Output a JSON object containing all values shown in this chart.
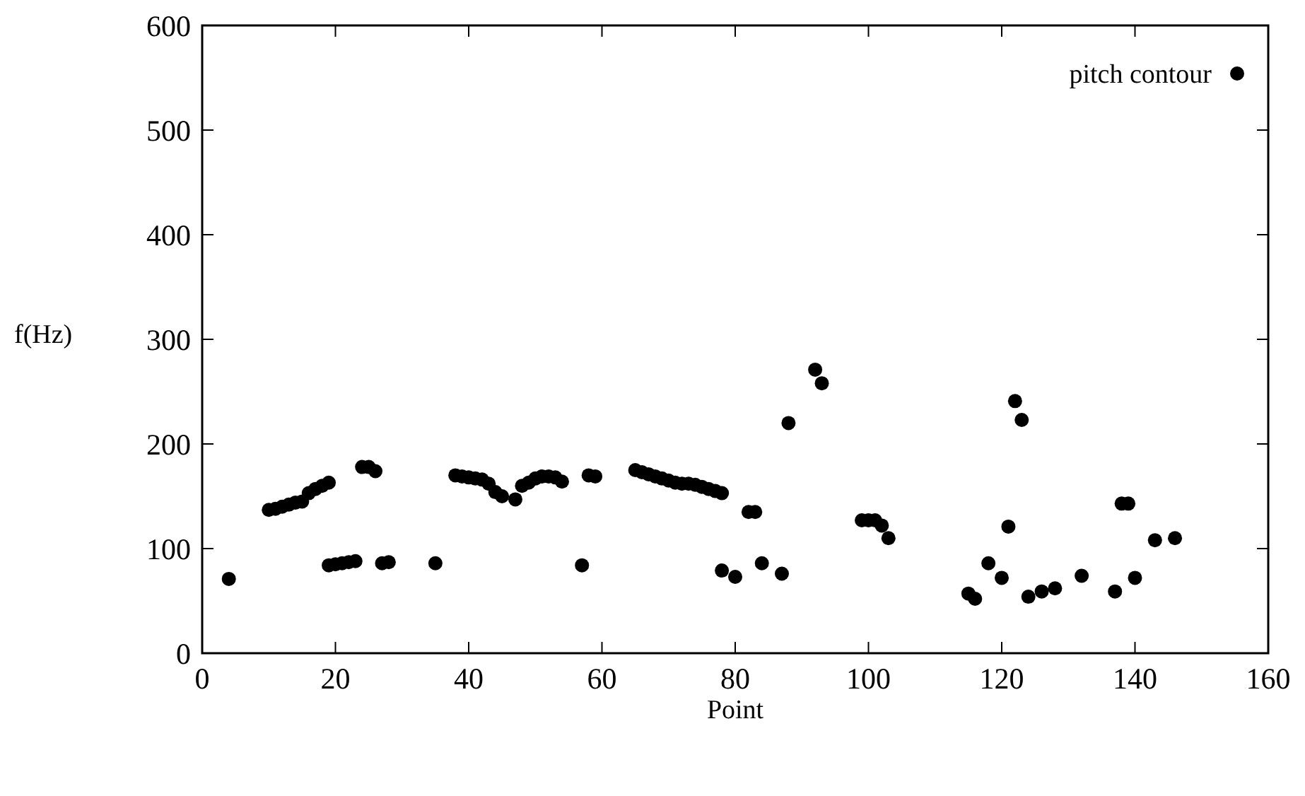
{
  "chart_data": {
    "type": "scatter",
    "xlabel": "Point",
    "ylabel": "f(Hz)",
    "xlim": [
      0,
      160
    ],
    "ylim": [
      0,
      600
    ],
    "xticks": [
      0,
      20,
      40,
      60,
      80,
      100,
      120,
      140,
      160
    ],
    "yticks": [
      0,
      100,
      200,
      300,
      400,
      500,
      600
    ],
    "grid": false,
    "legend": "top right",
    "marker": "circle",
    "series": [
      {
        "name": "pitch contour",
        "color": "#000000",
        "x": [
          4,
          10,
          11,
          12,
          13,
          14,
          15,
          16,
          17,
          18,
          19,
          19,
          20,
          21,
          22,
          23,
          24,
          25,
          26,
          27,
          28,
          35,
          38,
          39,
          40,
          41,
          42,
          43,
          44,
          45,
          47,
          48,
          49,
          50,
          51,
          52,
          53,
          54,
          57,
          58,
          59,
          65,
          66,
          67,
          68,
          69,
          70,
          71,
          72,
          73,
          74,
          75,
          76,
          77,
          78,
          78,
          80,
          82,
          83,
          84,
          87,
          88,
          92,
          93,
          99,
          100,
          101,
          102,
          103,
          115,
          116,
          118,
          120,
          121,
          122,
          123,
          124,
          126,
          128,
          132,
          137,
          138,
          139,
          140,
          143,
          146
        ],
        "values": [
          71,
          137,
          138,
          140,
          142,
          144,
          145,
          153,
          157,
          160,
          163,
          84,
          85,
          86,
          87,
          88,
          178,
          178,
          174,
          86,
          87,
          86,
          170,
          169,
          168,
          167,
          166,
          162,
          154,
          150,
          147,
          160,
          163,
          167,
          169,
          169,
          168,
          164,
          84,
          170,
          169,
          175,
          173,
          171,
          169,
          167,
          165,
          163,
          162,
          162,
          161,
          159,
          157,
          155,
          153,
          79,
          73,
          135,
          135,
          86,
          76,
          220,
          271,
          258,
          127,
          127,
          127,
          122,
          110,
          57,
          52,
          86,
          72,
          121,
          241,
          223,
          54,
          59,
          62,
          74,
          59,
          143,
          143,
          72,
          108,
          110
        ]
      }
    ]
  }
}
